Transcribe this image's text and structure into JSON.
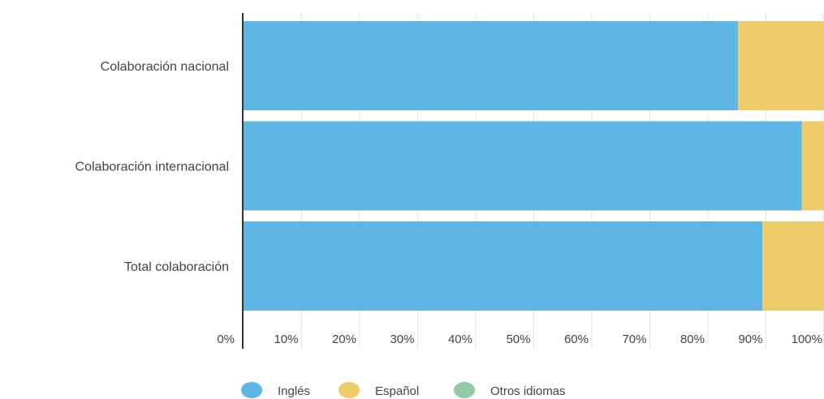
{
  "chart_data": {
    "type": "bar",
    "orientation": "horizontal",
    "stacked": true,
    "categories": [
      "Colaboración nacional",
      "Colaboración internacional",
      "Total colaboración"
    ],
    "series": [
      {
        "name": "Inglés",
        "values": [
          85.2,
          96.2,
          89.4
        ]
      },
      {
        "name": "Español",
        "values": [
          14.8,
          3.8,
          10.6
        ]
      },
      {
        "name": "Otros idiomas",
        "values": [
          0,
          0,
          0
        ]
      }
    ],
    "title": "",
    "xlabel": "",
    "ylabel": "",
    "xlim": [
      0,
      100
    ],
    "ticks": [
      0,
      10,
      20,
      30,
      40,
      50,
      60,
      70,
      80,
      90,
      100
    ],
    "tick_labels": [
      "0%",
      "10%",
      "20%",
      "30%",
      "40%",
      "50%",
      "60%",
      "70%",
      "80%",
      "90%",
      "100%"
    ],
    "grid": true,
    "legend": "bottom",
    "colors": [
      "#5eb6e4",
      "#efcc6a",
      "#8fc9a6"
    ]
  }
}
